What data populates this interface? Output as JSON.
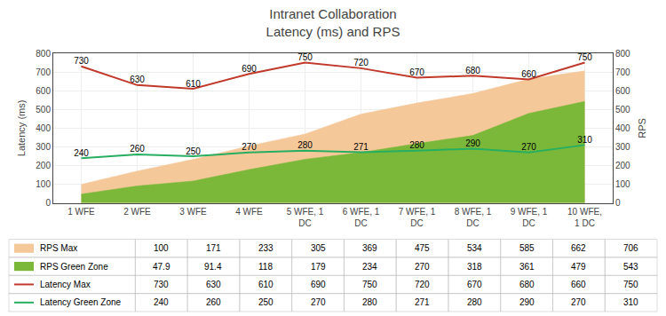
{
  "chart_data": {
    "type": "line",
    "title": "Intranet Collaboration",
    "subtitle": "Latency (ms) and RPS",
    "categories": [
      "1 WFE",
      "2 WFE",
      "3 WFE",
      "4 WFE",
      "5 WFE, 1\nDC",
      "6 WFE, 1\nDC",
      "7 WFE, 1\nDC",
      "8 WFE, 1\nDC",
      "9 WFE, 1\nDC",
      "10 WFE,\n1 DC"
    ],
    "series": [
      {
        "name": "RPS Max",
        "type": "area",
        "color": "#F5C89A",
        "axis": "y2",
        "values": [
          100,
          171,
          233,
          305,
          369,
          475,
          534,
          585,
          662,
          706
        ]
      },
      {
        "name": "RPS Green Zone",
        "type": "area",
        "color": "#7BB83A",
        "axis": "y2",
        "values": [
          47.9,
          91.4,
          118,
          179,
          234,
          270,
          318,
          361,
          479,
          543
        ]
      },
      {
        "name": "Latency Max",
        "type": "line",
        "color": "#C0392B",
        "data_labels": true,
        "values": [
          730,
          630,
          610,
          690,
          750,
          720,
          670,
          680,
          660,
          750
        ]
      },
      {
        "name": "Latency Green Zone",
        "type": "line",
        "color": "#27AE60",
        "data_labels": true,
        "values": [
          240,
          260,
          250,
          270,
          280,
          271,
          280,
          290,
          270,
          310
        ]
      }
    ],
    "ylabel": "Latency (ms)",
    "y2label": "RPS",
    "ylim": [
      0,
      800
    ],
    "yticks": [
      0,
      100,
      200,
      300,
      400,
      500,
      600,
      700,
      800
    ],
    "y2lim": [
      0,
      800
    ],
    "y2ticks": [
      0,
      100,
      200,
      300,
      400,
      500,
      600,
      700,
      800
    ],
    "grid": true
  }
}
